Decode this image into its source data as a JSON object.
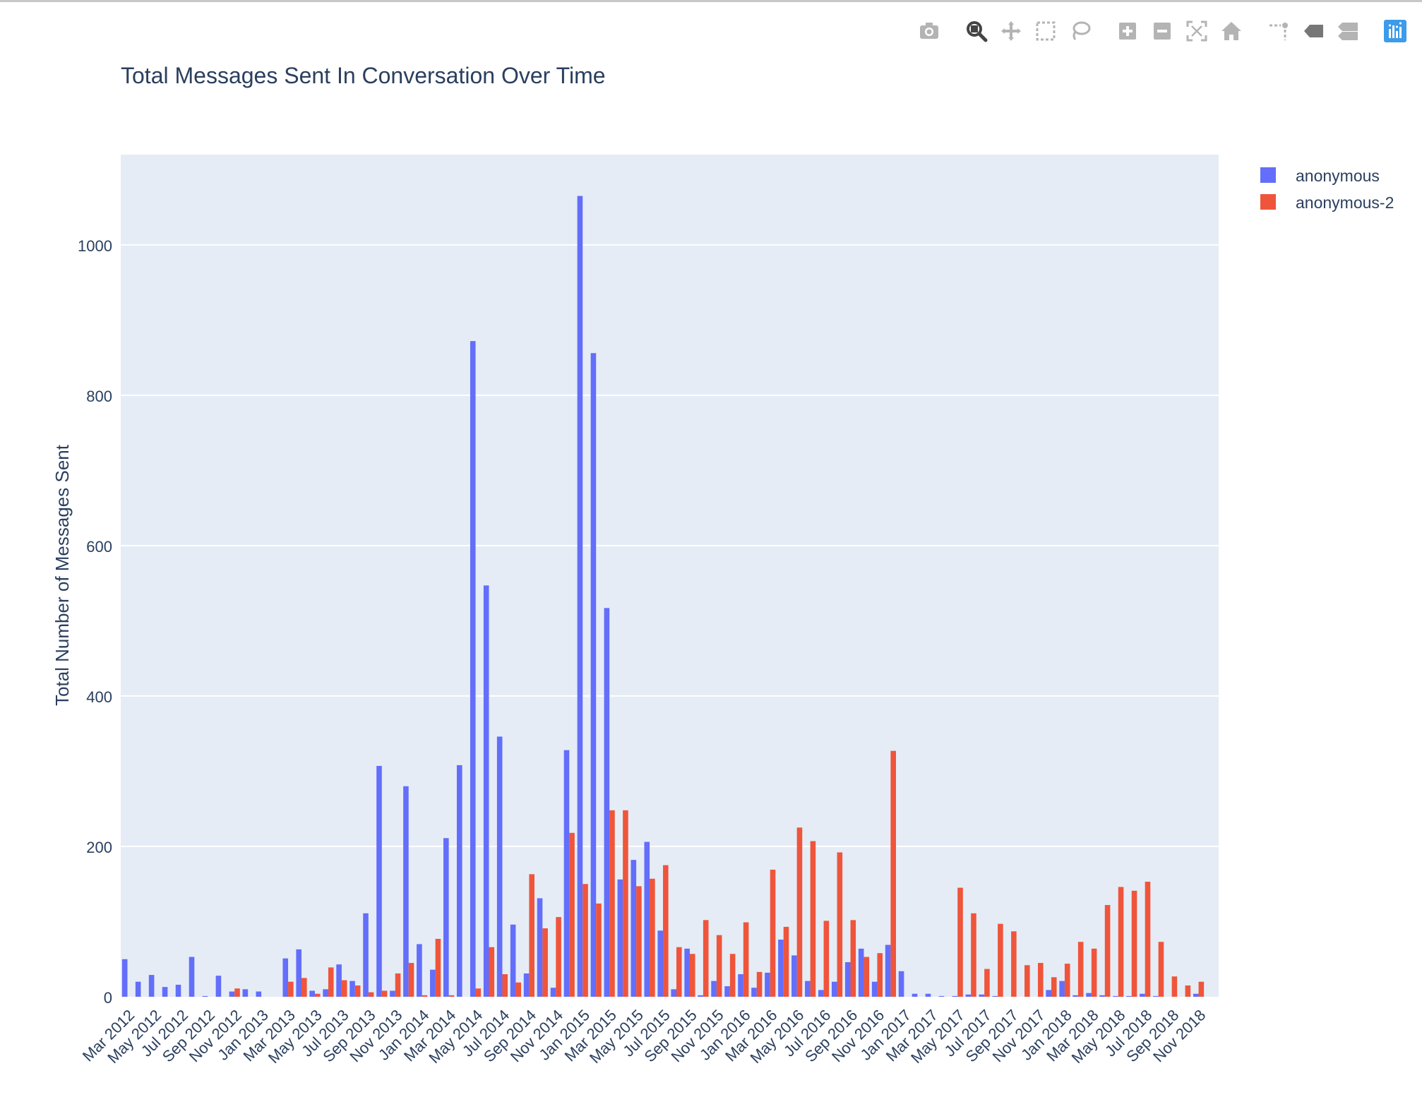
{
  "modebar": {
    "buttons": [
      {
        "name": "camera-icon",
        "title": "Download plot as a png"
      },
      {
        "name": "zoom-icon",
        "title": "Zoom"
      },
      {
        "name": "pan-icon",
        "title": "Pan"
      },
      {
        "name": "box-select-icon",
        "title": "Box Select"
      },
      {
        "name": "lasso-select-icon",
        "title": "Lasso Select"
      },
      {
        "name": "zoom-in-icon",
        "title": "Zoom in"
      },
      {
        "name": "zoom-out-icon",
        "title": "Zoom out"
      },
      {
        "name": "autoscale-icon",
        "title": "Autoscale"
      },
      {
        "name": "reset-axes-icon",
        "title": "Reset axes"
      },
      {
        "name": "spike-lines-icon",
        "title": "Toggle Spike Lines"
      },
      {
        "name": "hover-closest-icon",
        "title": "Show closest data on hover"
      },
      {
        "name": "hover-compare-icon",
        "title": "Compare data on hover"
      },
      {
        "name": "plotly-logo-icon",
        "title": "Produced with Plotly"
      }
    ],
    "active": "zoom-icon"
  },
  "chart_data": {
    "type": "bar",
    "title": "Total Messages Sent In Conversation Over Time",
    "xlabel": "",
    "ylabel": "Total Number of Messages Sent",
    "ylim": [
      0,
      1120
    ],
    "yticks": [
      0,
      200,
      400,
      600,
      800,
      1000
    ],
    "grid": true,
    "legend_position": "top-right",
    "categories": [
      "Mar 2012",
      "Apr 2012",
      "May 2012",
      "Jun 2012",
      "Jul 2012",
      "Aug 2012",
      "Sep 2012",
      "Oct 2012",
      "Nov 2012",
      "Dec 2012",
      "Jan 2013",
      "Feb 2013",
      "Mar 2013",
      "Apr 2013",
      "May 2013",
      "Jun 2013",
      "Jul 2013",
      "Aug 2013",
      "Sep 2013",
      "Oct 2013",
      "Nov 2013",
      "Dec 2013",
      "Jan 2014",
      "Feb 2014",
      "Mar 2014",
      "Apr 2014",
      "May 2014",
      "Jun 2014",
      "Jul 2014",
      "Aug 2014",
      "Sep 2014",
      "Oct 2014",
      "Nov 2014",
      "Dec 2014",
      "Jan 2015",
      "Feb 2015",
      "Mar 2015",
      "Apr 2015",
      "May 2015",
      "Jun 2015",
      "Jul 2015",
      "Aug 2015",
      "Sep 2015",
      "Oct 2015",
      "Nov 2015",
      "Dec 2015",
      "Jan 2016",
      "Feb 2016",
      "Mar 2016",
      "Apr 2016",
      "May 2016",
      "Jun 2016",
      "Jul 2016",
      "Aug 2016",
      "Sep 2016",
      "Oct 2016",
      "Nov 2016",
      "Dec 2016",
      "Jan 2017",
      "Feb 2017",
      "Mar 2017",
      "Apr 2017",
      "May 2017",
      "Jun 2017",
      "Jul 2017",
      "Aug 2017",
      "Sep 2017",
      "Oct 2017",
      "Nov 2017",
      "Dec 2017",
      "Jan 2018",
      "Feb 2018",
      "Mar 2018",
      "Apr 2018",
      "May 2018",
      "Jun 2018",
      "Jul 2018",
      "Aug 2018",
      "Sep 2018",
      "Oct 2018",
      "Nov 2018",
      "Dec 2018"
    ],
    "tick_labels": [
      "Mar 2012",
      "May 2012",
      "Jul 2012",
      "Sep 2012",
      "Nov 2012",
      "Jan 2013",
      "Mar 2013",
      "May 2013",
      "Jul 2013",
      "Sep 2013",
      "Nov 2013",
      "Jan 2014",
      "Mar 2014",
      "May 2014",
      "Jul 2014",
      "Sep 2014",
      "Nov 2014",
      "Jan 2015",
      "Mar 2015",
      "May 2015",
      "Jul 2015",
      "Sep 2015",
      "Nov 2015",
      "Jan 2016",
      "Mar 2016",
      "May 2016",
      "Jul 2016",
      "Sep 2016",
      "Nov 2016",
      "Jan 2017",
      "Mar 2017",
      "May 2017",
      "Jul 2017",
      "Sep 2017",
      "Nov 2017",
      "Jan 2018",
      "Mar 2018",
      "May 2018",
      "Jul 2018",
      "Sep 2018",
      "Nov 2018"
    ],
    "series": [
      {
        "name": "anonymous",
        "color": "#636efa",
        "values": [
          50,
          20,
          29,
          13,
          16,
          53,
          1,
          28,
          7,
          10,
          7,
          0,
          51,
          63,
          8,
          10,
          43,
          21,
          111,
          307,
          8,
          280,
          70,
          36,
          211,
          308,
          872,
          547,
          346,
          96,
          31,
          131,
          12,
          328,
          1065,
          856,
          517,
          156,
          182,
          206,
          88,
          10,
          64,
          2,
          21,
          14,
          30,
          12,
          32,
          76,
          55,
          21,
          9,
          20,
          46,
          64,
          20,
          69,
          34,
          4,
          4,
          1,
          1,
          3,
          3,
          1,
          0,
          0,
          0,
          9,
          21,
          2,
          5,
          2,
          1,
          1,
          4,
          1,
          0,
          0,
          4,
          0
        ]
      },
      {
        "name": "anonymous-2",
        "color": "#ef553b",
        "values": [
          0,
          0,
          0,
          0,
          0,
          0,
          0,
          0,
          11,
          0,
          0,
          0,
          20,
          25,
          4,
          39,
          22,
          15,
          6,
          8,
          31,
          45,
          2,
          77,
          2,
          0,
          11,
          66,
          30,
          19,
          163,
          91,
          106,
          218,
          150,
          124,
          248,
          248,
          147,
          157,
          175,
          66,
          57,
          102,
          82,
          57,
          99,
          33,
          169,
          93,
          225,
          207,
          101,
          192,
          102,
          53,
          58,
          327,
          0,
          0,
          0,
          0,
          145,
          111,
          37,
          97,
          87,
          42,
          45,
          26,
          44,
          73,
          64,
          122,
          146,
          141,
          153,
          73,
          27,
          15,
          20,
          0
        ]
      }
    ]
  }
}
